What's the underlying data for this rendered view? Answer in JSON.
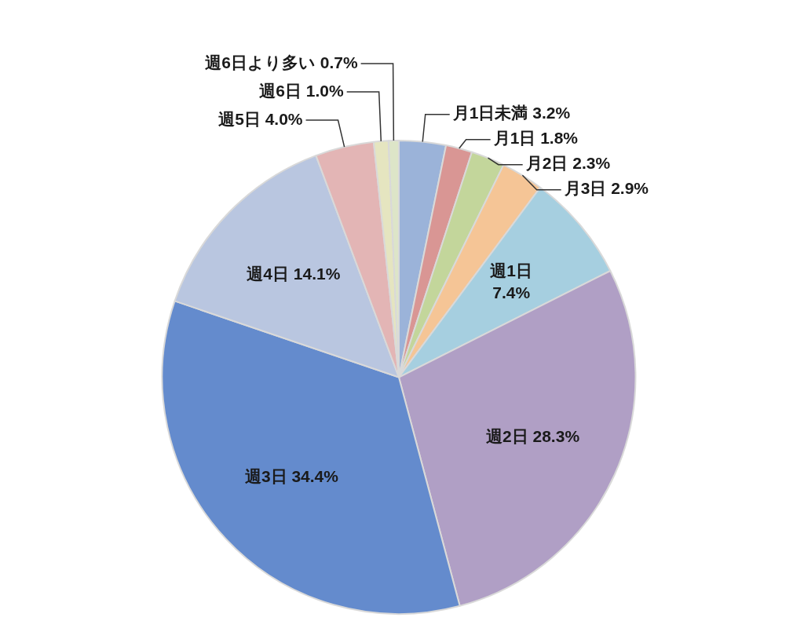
{
  "chart_data": {
    "type": "pie",
    "categories": [
      "月1日未満",
      "月1日",
      "月2日",
      "月3日",
      "週1日",
      "週2日",
      "週3日",
      "週4日",
      "週5日",
      "週6日",
      "週6日より多い"
    ],
    "values": [
      3.2,
      1.8,
      2.3,
      2.9,
      7.4,
      28.3,
      34.4,
      14.1,
      4.0,
      1.0,
      0.7
    ],
    "value_labels": [
      "3.2%",
      "1.8%",
      "2.3%",
      "2.9%",
      "7.4%",
      "28.3%",
      "34.4%",
      "14.1%",
      "4.0%",
      "1.0%",
      "0.7%"
    ],
    "colors": [
      "#9bb3d9",
      "#d99694",
      "#c3d69b",
      "#f5c596",
      "#a6cfe0",
      "#b09fc5",
      "#648bcd",
      "#b9c6e0",
      "#e3b5b5",
      "#e5e5c0",
      "#dde5c8"
    ]
  }
}
